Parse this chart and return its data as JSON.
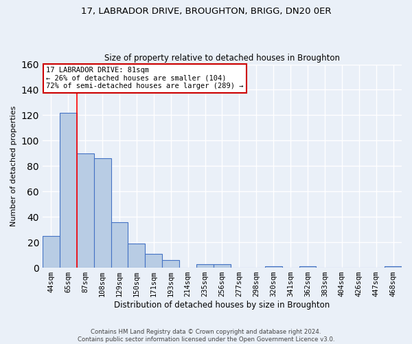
{
  "title": "17, LABRADOR DRIVE, BROUGHTON, BRIGG, DN20 0ER",
  "subtitle": "Size of property relative to detached houses in Broughton",
  "xlabel": "Distribution of detached houses by size in Broughton",
  "ylabel": "Number of detached properties",
  "bar_labels": [
    "44sqm",
    "65sqm",
    "87sqm",
    "108sqm",
    "129sqm",
    "150sqm",
    "171sqm",
    "193sqm",
    "214sqm",
    "235sqm",
    "256sqm",
    "277sqm",
    "298sqm",
    "320sqm",
    "341sqm",
    "362sqm",
    "383sqm",
    "404sqm",
    "426sqm",
    "447sqm",
    "468sqm"
  ],
  "bar_values": [
    25,
    122,
    90,
    86,
    36,
    19,
    11,
    6,
    0,
    3,
    3,
    0,
    0,
    1,
    0,
    1,
    0,
    0,
    0,
    0,
    1
  ],
  "bar_color": "#b8cce4",
  "bar_edge_color": "#4472c4",
  "ylim": [
    0,
    160
  ],
  "yticks": [
    0,
    20,
    40,
    60,
    80,
    100,
    120,
    140,
    160
  ],
  "red_line_x": 1.5,
  "annotation_text": "17 LABRADOR DRIVE: 81sqm\n← 26% of detached houses are smaller (104)\n72% of semi-detached houses are larger (289) →",
  "annotation_box_color": "#ffffff",
  "annotation_box_edge": "#cc0000",
  "background_color": "#eaf0f8",
  "grid_color": "#ffffff",
  "footer_text": "Contains HM Land Registry data © Crown copyright and database right 2024.\nContains public sector information licensed under the Open Government Licence v3.0."
}
